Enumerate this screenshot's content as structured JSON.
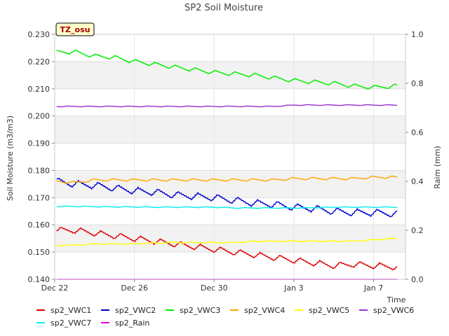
{
  "chart_data": {
    "type": "line",
    "title": "SP2 Soil Moisture",
    "xlabel": "Time",
    "ylabel": "Soil Moisture (m3/m3)",
    "y2label": "Raim (mm)",
    "badge": "TZ_osu",
    "ylim": [
      0.14,
      0.23
    ],
    "y2lim": [
      0.0,
      1.0
    ],
    "xlim_days": [
      22,
      39.6
    ],
    "yticks": [
      {
        "v": 0.14,
        "label": "0.140"
      },
      {
        "v": 0.15,
        "label": "0.150"
      },
      {
        "v": 0.16,
        "label": "0.160"
      },
      {
        "v": 0.17,
        "label": "0.170"
      },
      {
        "v": 0.18,
        "label": "0.180"
      },
      {
        "v": 0.19,
        "label": "0.190"
      },
      {
        "v": 0.2,
        "label": "0.200"
      },
      {
        "v": 0.21,
        "label": "0.210"
      },
      {
        "v": 0.22,
        "label": "0.220"
      },
      {
        "v": 0.23,
        "label": "0.230"
      }
    ],
    "y2ticks": [
      {
        "v": 0.0,
        "label": "0.0"
      },
      {
        "v": 0.2,
        "label": "0.2"
      },
      {
        "v": 0.4,
        "label": "0.4"
      },
      {
        "v": 0.6,
        "label": "0.6"
      },
      {
        "v": 0.8,
        "label": "0.8"
      },
      {
        "v": 1.0,
        "label": "1.0"
      }
    ],
    "xticks": [
      {
        "day": 22,
        "label": "Dec 22"
      },
      {
        "day": 26,
        "label": "Dec 26"
      },
      {
        "day": 30,
        "label": "Dec 30"
      },
      {
        "day": 34,
        "label": "Jan 3"
      },
      {
        "day": 38,
        "label": "Jan 7"
      }
    ],
    "grid": true,
    "legend_position": "bottom",
    "series": [
      {
        "name": "sp2_VWC1",
        "color": "#dd0000",
        "axis": "left",
        "amp": 0.0022,
        "points": [
          [
            22.1,
            0.158
          ],
          [
            23,
            0.158
          ],
          [
            24,
            0.157
          ],
          [
            25,
            0.156
          ],
          [
            26,
            0.155
          ],
          [
            27,
            0.154
          ],
          [
            28,
            0.153
          ],
          [
            29,
            0.152
          ],
          [
            30,
            0.151
          ],
          [
            31,
            0.15
          ],
          [
            32,
            0.149
          ],
          [
            33,
            0.148
          ],
          [
            34,
            0.147
          ],
          [
            35,
            0.146
          ],
          [
            36,
            0.145
          ],
          [
            37,
            0.1455
          ],
          [
            38,
            0.145
          ],
          [
            39.2,
            0.1445
          ]
        ]
      },
      {
        "name": "sp2_VWC2",
        "color": "#0000cc",
        "axis": "left",
        "amp": 0.0025,
        "points": [
          [
            22.1,
            0.176
          ],
          [
            23,
            0.175
          ],
          [
            24,
            0.1745
          ],
          [
            25,
            0.1735
          ],
          [
            26,
            0.1725
          ],
          [
            27,
            0.172
          ],
          [
            28,
            0.171
          ],
          [
            29,
            0.1705
          ],
          [
            30,
            0.17
          ],
          [
            31,
            0.169
          ],
          [
            32,
            0.168
          ],
          [
            33,
            0.1675
          ],
          [
            34,
            0.1665
          ],
          [
            35,
            0.166
          ],
          [
            36,
            0.165
          ],
          [
            37,
            0.1645
          ],
          [
            38,
            0.1645
          ],
          [
            39.2,
            0.164
          ]
        ]
      },
      {
        "name": "sp2_VWC3",
        "color": "#00ee00",
        "axis": "left",
        "amp": 0.0015,
        "points": [
          [
            22.1,
            0.2235
          ],
          [
            23,
            0.2235
          ],
          [
            24,
            0.222
          ],
          [
            25,
            0.2215
          ],
          [
            26,
            0.22
          ],
          [
            27,
            0.219
          ],
          [
            28,
            0.218
          ],
          [
            29,
            0.217
          ],
          [
            30,
            0.216
          ],
          [
            31,
            0.2155
          ],
          [
            32,
            0.215
          ],
          [
            33,
            0.214
          ],
          [
            34,
            0.213
          ],
          [
            35,
            0.2125
          ],
          [
            36,
            0.212
          ],
          [
            37,
            0.211
          ],
          [
            38,
            0.2105
          ],
          [
            39.2,
            0.211
          ]
        ]
      },
      {
        "name": "sp2_VWC4",
        "color": "#ffa500",
        "axis": "left",
        "amp": 0.0009,
        "points": [
          [
            22.1,
            0.176
          ],
          [
            23,
            0.1755
          ],
          [
            24,
            0.1765
          ],
          [
            25,
            0.1765
          ],
          [
            26,
            0.1765
          ],
          [
            27,
            0.1765
          ],
          [
            28,
            0.1765
          ],
          [
            29,
            0.1765
          ],
          [
            30,
            0.1765
          ],
          [
            31,
            0.1765
          ],
          [
            32,
            0.1765
          ],
          [
            33,
            0.1765
          ],
          [
            34,
            0.177
          ],
          [
            35,
            0.177
          ],
          [
            36,
            0.177
          ],
          [
            37,
            0.177
          ],
          [
            38,
            0.1775
          ],
          [
            39.2,
            0.1775
          ]
        ]
      },
      {
        "name": "sp2_VWC5",
        "color": "#ffff00",
        "axis": "left",
        "amp": 0.0004,
        "points": [
          [
            22.1,
            0.1525
          ],
          [
            23,
            0.1525
          ],
          [
            24,
            0.153
          ],
          [
            25,
            0.153
          ],
          [
            26,
            0.153
          ],
          [
            27,
            0.1533
          ],
          [
            28,
            0.1535
          ],
          [
            29,
            0.1535
          ],
          [
            30,
            0.1535
          ],
          [
            31,
            0.1535
          ],
          [
            32,
            0.154
          ],
          [
            33,
            0.154
          ],
          [
            34,
            0.154
          ],
          [
            35,
            0.154
          ],
          [
            36,
            0.154
          ],
          [
            37,
            0.154
          ],
          [
            38,
            0.1545
          ],
          [
            39.2,
            0.155
          ]
        ]
      },
      {
        "name": "sp2_VWC6",
        "color": "#9933cc",
        "axis": "left",
        "amp": 0.0003,
        "points": [
          [
            22.1,
            0.2035
          ],
          [
            23,
            0.2035
          ],
          [
            24,
            0.2035
          ],
          [
            25,
            0.2035
          ],
          [
            26,
            0.2035
          ],
          [
            27,
            0.2035
          ],
          [
            28,
            0.2035
          ],
          [
            29,
            0.2035
          ],
          [
            30,
            0.2035
          ],
          [
            31,
            0.2035
          ],
          [
            32,
            0.2035
          ],
          [
            33,
            0.2035
          ],
          [
            34,
            0.204
          ],
          [
            35,
            0.204
          ],
          [
            36,
            0.204
          ],
          [
            37,
            0.204
          ],
          [
            38,
            0.204
          ],
          [
            39.2,
            0.204
          ]
        ]
      },
      {
        "name": "sp2_VWC7",
        "color": "#00eeee",
        "axis": "left",
        "amp": 0.0003,
        "points": [
          [
            22.1,
            0.1668
          ],
          [
            23,
            0.1668
          ],
          [
            24,
            0.1667
          ],
          [
            25,
            0.1666
          ],
          [
            26,
            0.1666
          ],
          [
            27,
            0.1665
          ],
          [
            28,
            0.1665
          ],
          [
            29,
            0.1665
          ],
          [
            30,
            0.1665
          ],
          [
            31,
            0.1662
          ],
          [
            32,
            0.1662
          ],
          [
            33,
            0.1662
          ],
          [
            34,
            0.1662
          ],
          [
            35,
            0.1663
          ],
          [
            36,
            0.1665
          ],
          [
            37,
            0.1665
          ],
          [
            38,
            0.1665
          ],
          [
            39.2,
            0.1665
          ]
        ]
      },
      {
        "name": "sp2_Rain",
        "color": "#dd00dd",
        "axis": "right",
        "amp": 0,
        "points": [
          [
            22.1,
            0.0
          ],
          [
            39.2,
            0.0
          ]
        ]
      }
    ]
  }
}
